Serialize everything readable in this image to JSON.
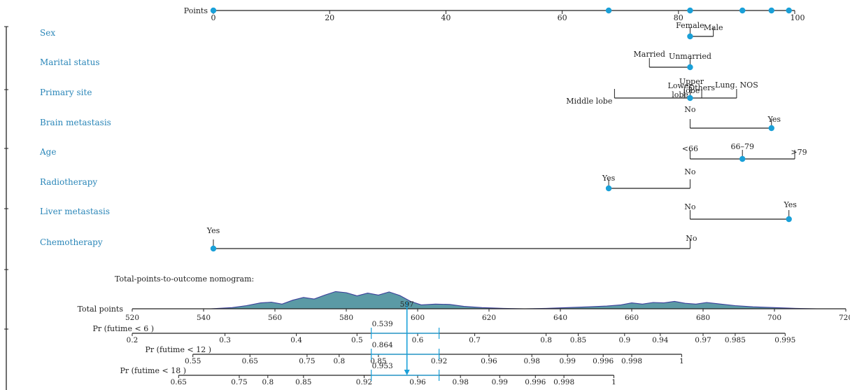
{
  "colors": {
    "accent": "#1aa0d8",
    "label": "#2a86b8",
    "axis": "#222222",
    "density_fill": "#5b9aa5",
    "density_stroke": "#3b3f9a"
  },
  "chart_data": {
    "type": "nomogram",
    "points_axis": {
      "label": "Points",
      "range": [
        0,
        100
      ],
      "ticks": [
        0,
        20,
        40,
        60,
        80,
        100
      ],
      "marked_points": [
        0,
        68,
        82,
        91,
        96,
        99
      ]
    },
    "variables": [
      {
        "name": "Sex",
        "levels": [
          {
            "label": "Female",
            "points": 82
          },
          {
            "label": "Male",
            "points": 86
          }
        ],
        "selected": "Female"
      },
      {
        "name": "Marital status",
        "levels": [
          {
            "label": "Married",
            "points": 75
          },
          {
            "label": "Unmarried",
            "points": 82
          }
        ],
        "selected": "Unmarried"
      },
      {
        "name": "Primary site",
        "levels": [
          {
            "label": "Middle lobe",
            "points": 69
          },
          {
            "label": "Lower lobe",
            "points": 81
          },
          {
            "label": "Upper lobe",
            "points": 82
          },
          {
            "label": "Others",
            "points": 84
          },
          {
            "label": "Lung. NOS",
            "points": 90
          }
        ],
        "selected": "Upper lobe"
      },
      {
        "name": "Brain metastasis",
        "levels": [
          {
            "label": "No",
            "points": 82
          },
          {
            "label": "Yes",
            "points": 96
          }
        ],
        "selected": "Yes"
      },
      {
        "name": "Age",
        "levels": [
          {
            "label": "<66",
            "points": 82
          },
          {
            "label": "66–79",
            "points": 91
          },
          {
            "label": ">79",
            "points": 100
          }
        ],
        "selected": "66–79"
      },
      {
        "name": "Radiotherapy",
        "levels": [
          {
            "label": "Yes",
            "points": 68
          },
          {
            "label": "No",
            "points": 82
          }
        ],
        "selected": "Yes"
      },
      {
        "name": "Liver metastasis",
        "levels": [
          {
            "label": "No",
            "points": 82
          },
          {
            "label": "Yes",
            "points": 99
          }
        ],
        "selected": "Yes"
      },
      {
        "name": "Chemotherapy",
        "levels": [
          {
            "label": "Yes",
            "points": 0
          },
          {
            "label": "No",
            "points": 82
          }
        ],
        "selected": "Yes"
      }
    ],
    "subtitle": "Total-points-to-outcome nomogram:",
    "total_points": {
      "label": "Total points",
      "range": [
        520,
        720
      ],
      "ticks": [
        520,
        540,
        560,
        580,
        600,
        620,
        640,
        660,
        680,
        700,
        720
      ],
      "marked_value": "597",
      "marked_at": 597,
      "density": [
        [
          542,
          0
        ],
        [
          548,
          0.06
        ],
        [
          552,
          0.16
        ],
        [
          556,
          0.3
        ],
        [
          559,
          0.34
        ],
        [
          562,
          0.24
        ],
        [
          565,
          0.44
        ],
        [
          568,
          0.58
        ],
        [
          571,
          0.5
        ],
        [
          574,
          0.7
        ],
        [
          577,
          0.88
        ],
        [
          580,
          0.82
        ],
        [
          583,
          0.66
        ],
        [
          586,
          0.8
        ],
        [
          589,
          0.7
        ],
        [
          592,
          0.86
        ],
        [
          595,
          0.68
        ],
        [
          598,
          0.38
        ],
        [
          601,
          0.2
        ],
        [
          605,
          0.24
        ],
        [
          609,
          0.22
        ],
        [
          613,
          0.12
        ],
        [
          618,
          0.06
        ],
        [
          624,
          0.02
        ],
        [
          630,
          0
        ],
        [
          636,
          0.02
        ],
        [
          642,
          0.06
        ],
        [
          648,
          0.1
        ],
        [
          653,
          0.14
        ],
        [
          657,
          0.2
        ],
        [
          660,
          0.3
        ],
        [
          663,
          0.24
        ],
        [
          666,
          0.32
        ],
        [
          669,
          0.3
        ],
        [
          672,
          0.38
        ],
        [
          675,
          0.28
        ],
        [
          678,
          0.24
        ],
        [
          681,
          0.32
        ],
        [
          685,
          0.24
        ],
        [
          689,
          0.16
        ],
        [
          694,
          0.1
        ],
        [
          700,
          0.06
        ],
        [
          706,
          0.02
        ],
        [
          712,
          0
        ]
      ]
    },
    "probability_axes": [
      {
        "label": "Pr (futime < 6 )",
        "ticks": [
          {
            "label": "0.2",
            "points": 520
          },
          {
            "label": "0.3",
            "points": 546
          },
          {
            "label": "0.4",
            "points": 566
          },
          {
            "label": "0.5",
            "points": 583
          },
          {
            "label": "0.6",
            "points": 600
          },
          {
            "label": "0.7",
            "points": 616
          },
          {
            "label": "0.8",
            "points": 636
          },
          {
            "label": "0.85",
            "points": 645
          },
          {
            "label": "0.9",
            "points": 658
          },
          {
            "label": "0.94",
            "points": 668
          },
          {
            "label": "0.97",
            "points": 680
          },
          {
            "label": "0.985",
            "points": 689
          },
          {
            "label": "0.995",
            "points": 703
          }
        ],
        "estimate": "0.539",
        "ci_points": [
          587,
          606
        ]
      },
      {
        "label": "Pr (futime < 12 )",
        "ticks": [
          {
            "label": "0.55",
            "points": 537
          },
          {
            "label": "0.65",
            "points": 553
          },
          {
            "label": "0.75",
            "points": 569
          },
          {
            "label": "0.8",
            "points": 578
          },
          {
            "label": "0.85",
            "points": 589
          },
          {
            "label": "0.92",
            "points": 606
          },
          {
            "label": "0.96",
            "points": 620
          },
          {
            "label": "0.98",
            "points": 632
          },
          {
            "label": "0.99",
            "points": 642
          },
          {
            "label": "0.996",
            "points": 652
          },
          {
            "label": "0.998",
            "points": 660
          },
          {
            "label": "1",
            "points": 674
          }
        ],
        "estimate": "0.864",
        "ci_points": [
          587,
          606
        ]
      },
      {
        "label": "Pr (futime < 18 )",
        "ticks": [
          {
            "label": "0.65",
            "points": 533
          },
          {
            "label": "0.75",
            "points": 550
          },
          {
            "label": "0.8",
            "points": 558
          },
          {
            "label": "0.85",
            "points": 568
          },
          {
            "label": "0.92",
            "points": 585
          },
          {
            "label": "0.96",
            "points": 600
          },
          {
            "label": "0.98",
            "points": 612
          },
          {
            "label": "0.99",
            "points": 623
          },
          {
            "label": "0.996",
            "points": 633
          },
          {
            "label": "0.998",
            "points": 641
          },
          {
            "label": "1",
            "points": 655
          }
        ],
        "estimate": "0.953",
        "ci_points": [
          587,
          606
        ]
      }
    ]
  }
}
